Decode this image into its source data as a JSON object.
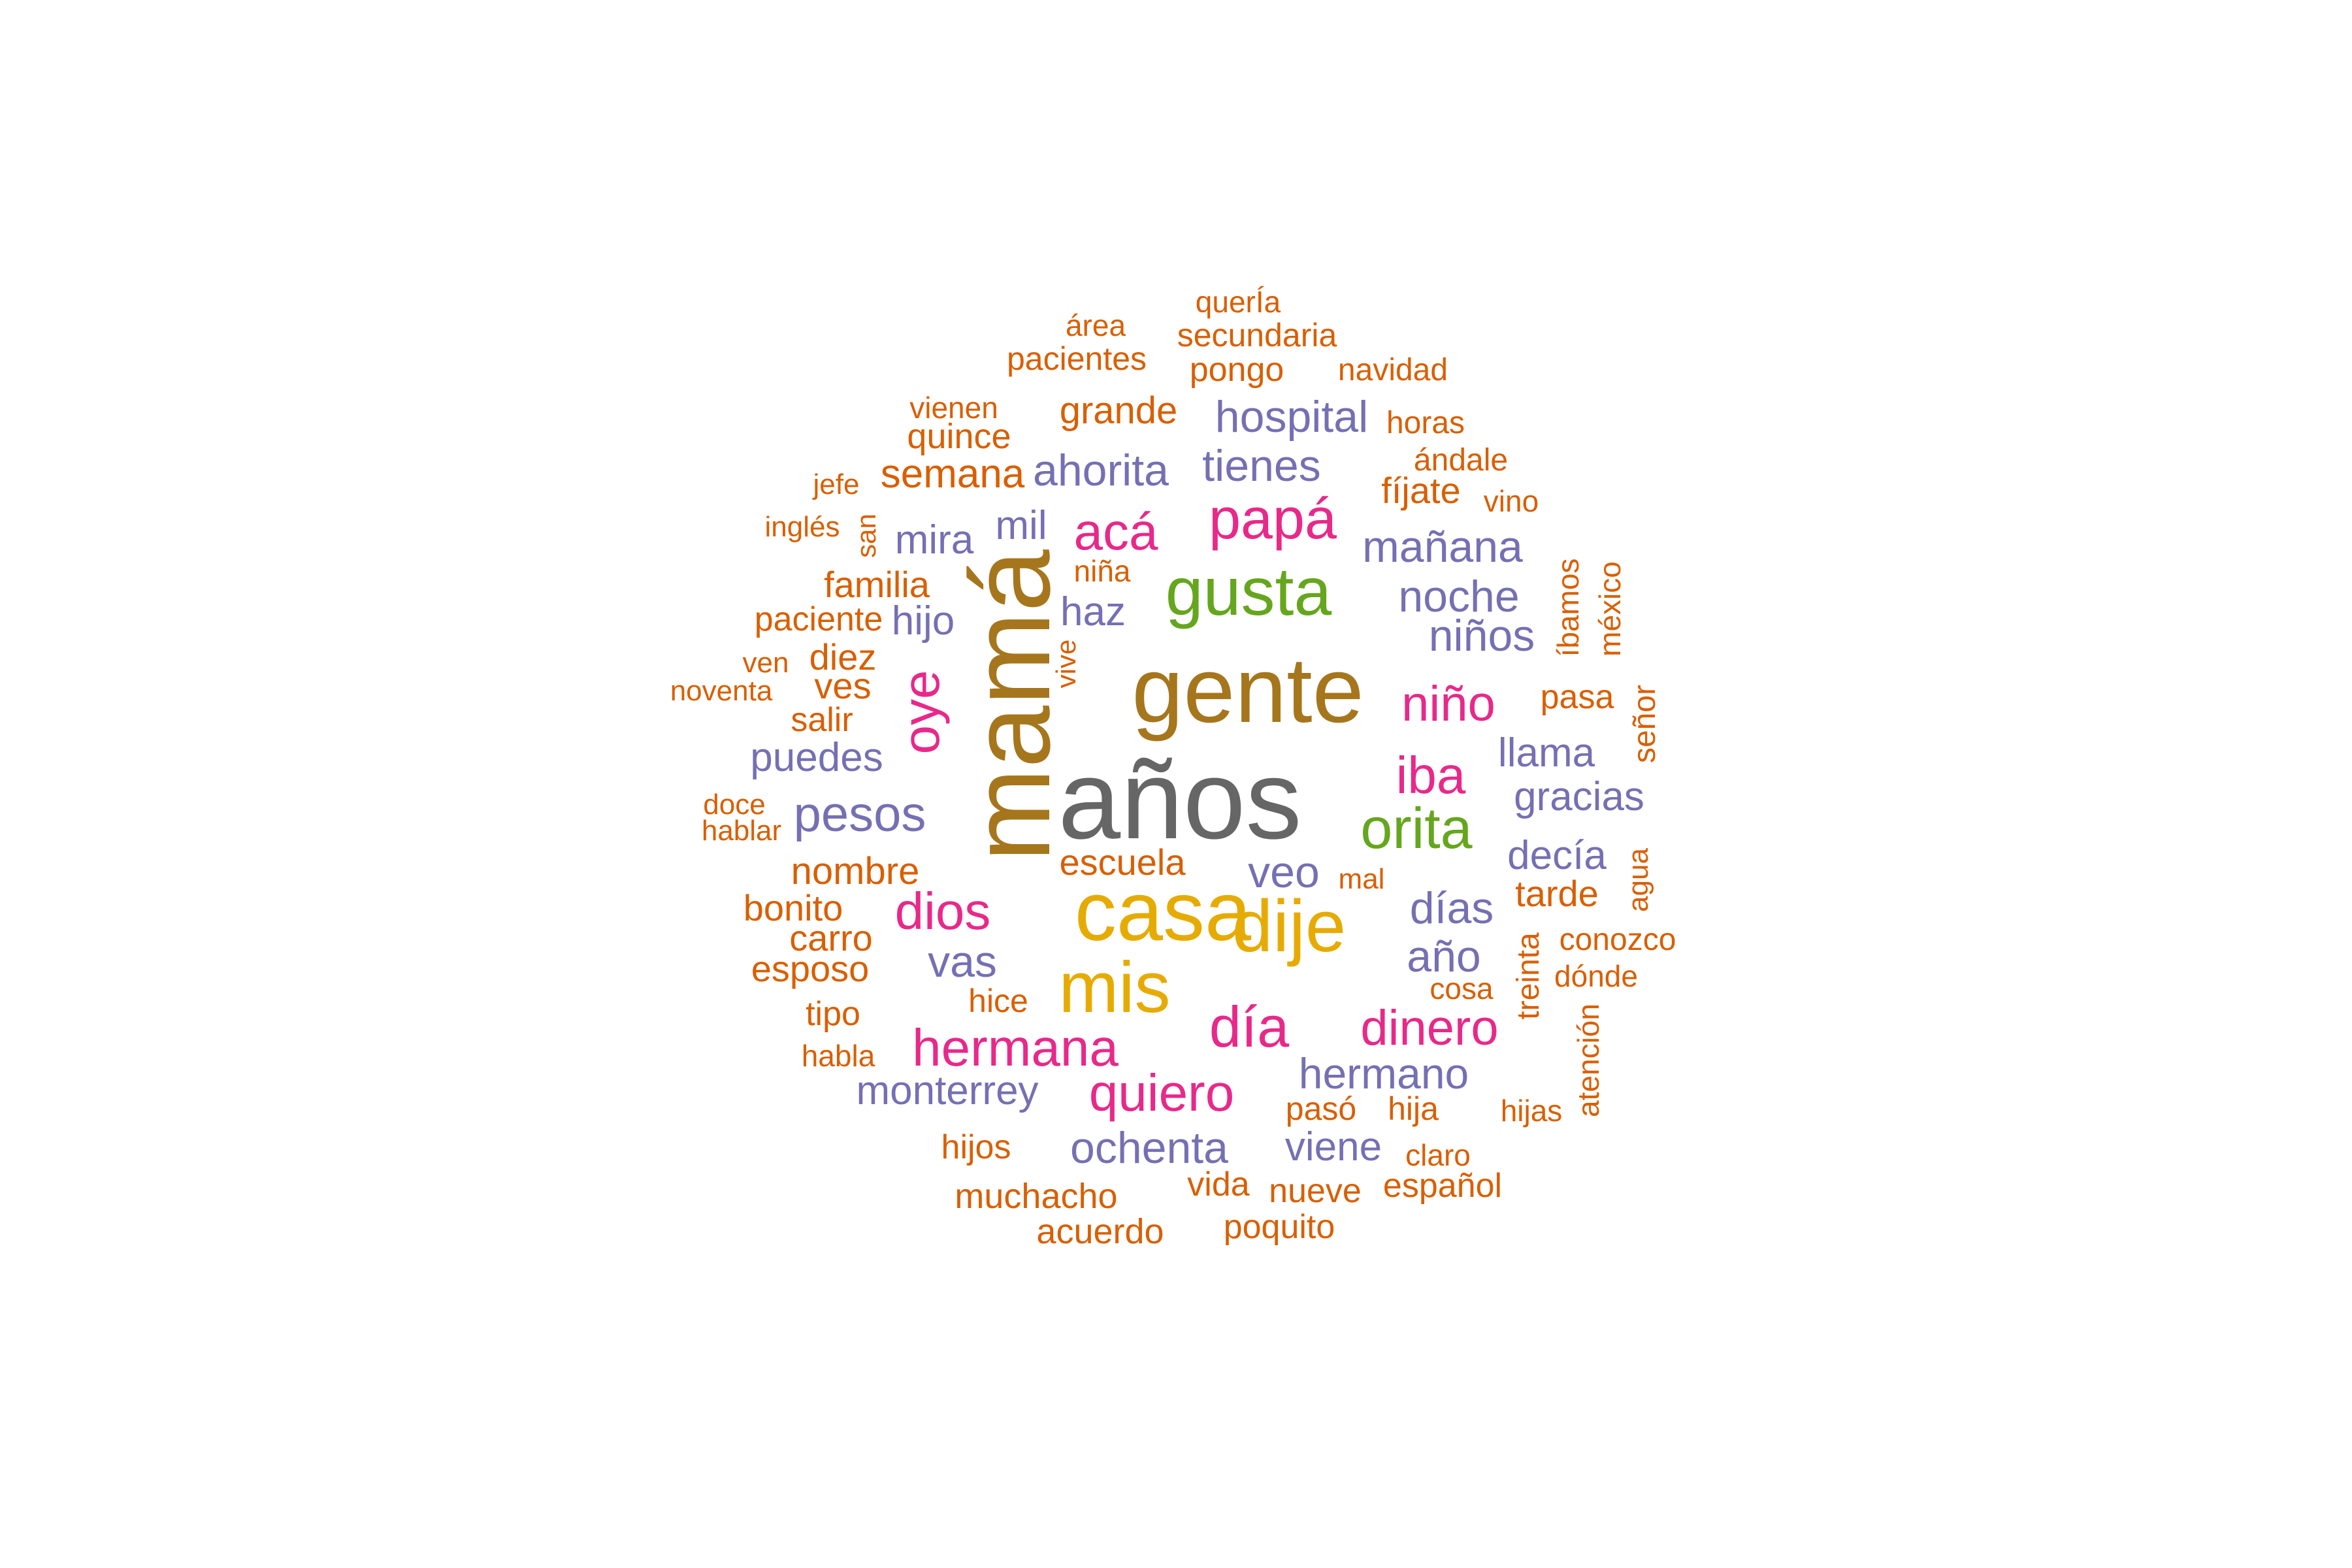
{
  "colors": {
    "gray": "#666666",
    "brown": "#a6761d",
    "gold": "#e6ab02",
    "green": "#66a61e",
    "pink": "#e7298a",
    "purple": "#7570b3",
    "orange": "#d95f02"
  },
  "words": [
    {
      "text": "años",
      "color": "gray"
    },
    {
      "text": "mamá",
      "color": "brown"
    },
    {
      "text": "gente",
      "color": "brown"
    },
    {
      "text": "casa",
      "color": "gold"
    },
    {
      "text": "dije",
      "color": "gold"
    },
    {
      "text": "mis",
      "color": "gold"
    },
    {
      "text": "gusta",
      "color": "green"
    },
    {
      "text": "orita",
      "color": "green"
    },
    {
      "text": "papá",
      "color": "pink"
    },
    {
      "text": "acá",
      "color": "pink"
    },
    {
      "text": "iba",
      "color": "pink"
    },
    {
      "text": "niño",
      "color": "pink"
    },
    {
      "text": "día",
      "color": "pink"
    },
    {
      "text": "dinero",
      "color": "pink"
    },
    {
      "text": "hermana",
      "color": "pink"
    },
    {
      "text": "quiero",
      "color": "pink"
    },
    {
      "text": "dios",
      "color": "pink"
    },
    {
      "text": "oye",
      "color": "pink"
    },
    {
      "text": "hospital",
      "color": "purple"
    },
    {
      "text": "ahorita",
      "color": "purple"
    },
    {
      "text": "tienes",
      "color": "purple"
    },
    {
      "text": "mañana",
      "color": "purple"
    },
    {
      "text": "noche",
      "color": "purple"
    },
    {
      "text": "niños",
      "color": "purple"
    },
    {
      "text": "llama",
      "color": "purple"
    },
    {
      "text": "gracias",
      "color": "purple"
    },
    {
      "text": "decía",
      "color": "purple"
    },
    {
      "text": "días",
      "color": "purple"
    },
    {
      "text": "año",
      "color": "purple"
    },
    {
      "text": "veo",
      "color": "purple"
    },
    {
      "text": "vas",
      "color": "purple"
    },
    {
      "text": "pesos",
      "color": "purple"
    },
    {
      "text": "puedes",
      "color": "purple"
    },
    {
      "text": "mira",
      "color": "purple"
    },
    {
      "text": "mil",
      "color": "purple"
    },
    {
      "text": "hijo",
      "color": "purple"
    },
    {
      "text": "haz",
      "color": "purple"
    },
    {
      "text": "hermano",
      "color": "purple"
    },
    {
      "text": "monterrey",
      "color": "purple"
    },
    {
      "text": "ochenta",
      "color": "purple"
    },
    {
      "text": "viene",
      "color": "purple"
    },
    {
      "text": "querÍa",
      "color": "orange"
    },
    {
      "text": "área",
      "color": "orange"
    },
    {
      "text": "secundaria",
      "color": "orange"
    },
    {
      "text": "pacientes",
      "color": "orange"
    },
    {
      "text": "pongo",
      "color": "orange"
    },
    {
      "text": "navidad",
      "color": "orange"
    },
    {
      "text": "vienen",
      "color": "orange"
    },
    {
      "text": "grande",
      "color": "orange"
    },
    {
      "text": "quince",
      "color": "orange"
    },
    {
      "text": "horas",
      "color": "orange"
    },
    {
      "text": "semana",
      "color": "orange"
    },
    {
      "text": "ándale",
      "color": "orange"
    },
    {
      "text": "jefe",
      "color": "orange"
    },
    {
      "text": "fíjate",
      "color": "orange"
    },
    {
      "text": "vino",
      "color": "orange"
    },
    {
      "text": "inglés",
      "color": "orange"
    },
    {
      "text": "san",
      "color": "orange"
    },
    {
      "text": "niña",
      "color": "orange"
    },
    {
      "text": "familia",
      "color": "orange"
    },
    {
      "text": "íbamos",
      "color": "orange"
    },
    {
      "text": "méxico",
      "color": "orange"
    },
    {
      "text": "paciente",
      "color": "orange"
    },
    {
      "text": "vive",
      "color": "orange"
    },
    {
      "text": "ven",
      "color": "orange"
    },
    {
      "text": "diez",
      "color": "orange"
    },
    {
      "text": "noventa",
      "color": "orange"
    },
    {
      "text": "ves",
      "color": "orange"
    },
    {
      "text": "pasa",
      "color": "orange"
    },
    {
      "text": "salir",
      "color": "orange"
    },
    {
      "text": "señor",
      "color": "orange"
    },
    {
      "text": "doce",
      "color": "orange"
    },
    {
      "text": "hablar",
      "color": "orange"
    },
    {
      "text": "escuela",
      "color": "orange"
    },
    {
      "text": "nombre",
      "color": "orange"
    },
    {
      "text": "mal",
      "color": "orange"
    },
    {
      "text": "agua",
      "color": "orange"
    },
    {
      "text": "tarde",
      "color": "orange"
    },
    {
      "text": "bonito",
      "color": "orange"
    },
    {
      "text": "carro",
      "color": "orange"
    },
    {
      "text": "conozco",
      "color": "orange"
    },
    {
      "text": "treinta",
      "color": "orange"
    },
    {
      "text": "esposo",
      "color": "orange"
    },
    {
      "text": "dónde",
      "color": "orange"
    },
    {
      "text": "cosa",
      "color": "orange"
    },
    {
      "text": "hice",
      "color": "orange"
    },
    {
      "text": "tipo",
      "color": "orange"
    },
    {
      "text": "atención",
      "color": "orange"
    },
    {
      "text": "habla",
      "color": "orange"
    },
    {
      "text": "hija",
      "color": "orange"
    },
    {
      "text": "pasó",
      "color": "orange"
    },
    {
      "text": "hijas",
      "color": "orange"
    },
    {
      "text": "hijos",
      "color": "orange"
    },
    {
      "text": "claro",
      "color": "orange"
    },
    {
      "text": "muchacho",
      "color": "orange"
    },
    {
      "text": "vida",
      "color": "orange"
    },
    {
      "text": "nueve",
      "color": "orange"
    },
    {
      "text": "español",
      "color": "orange"
    },
    {
      "text": "acuerdo",
      "color": "orange"
    },
    {
      "text": "poquito",
      "color": "orange"
    }
  ]
}
